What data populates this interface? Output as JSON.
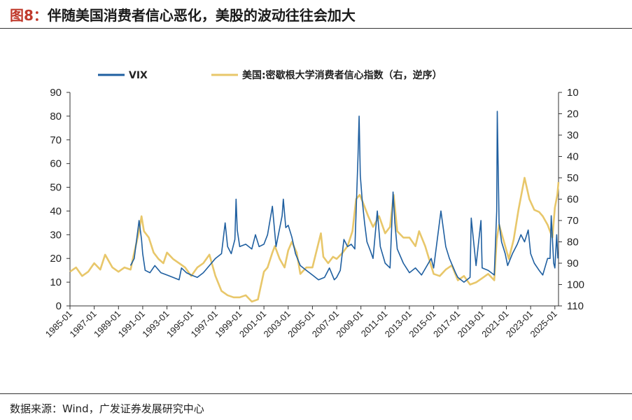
{
  "header": {
    "label": "图8：",
    "title": "伴随美国消费者信心恶化，美股的波动往往会加大"
  },
  "source": "数据来源：Wind，广发证券发展研究中心",
  "colors": {
    "vix": "#1f5fa0",
    "sentiment": "#e8c76a",
    "axis": "#333333"
  },
  "chart_data": {
    "type": "line",
    "title": "",
    "xlabel": "",
    "ylabel": "",
    "y_left": {
      "lim": [
        0,
        90
      ],
      "ticks": [
        0,
        10,
        20,
        30,
        40,
        50,
        60,
        70,
        80,
        90
      ]
    },
    "y_right": {
      "lim": [
        10,
        110
      ],
      "inverted": true,
      "ticks": [
        10,
        20,
        30,
        40,
        50,
        60,
        70,
        80,
        90,
        100,
        110
      ]
    },
    "x_range": [
      1985.0,
      2025.3
    ],
    "x_tick_labels": [
      "1985-01",
      "1987-01",
      "1989-01",
      "1991-01",
      "1993-01",
      "1995-01",
      "1997-01",
      "1999-01",
      "2001-01",
      "2003-01",
      "2005-01",
      "2007-01",
      "2009-01",
      "2011-01",
      "2013-01",
      "2015-01",
      "2017-01",
      "2019-01",
      "2021-01",
      "2023-01",
      "2025-01"
    ],
    "legend": {
      "position": "top",
      "entries": [
        "VIX",
        "美国:密歇根大学消费者信心指数（右，逆序）"
      ]
    },
    "series": [
      {
        "name": "VIX",
        "axis": "left",
        "x": [
          1990.0,
          1990.3,
          1990.6,
          1990.7,
          1990.9,
          1991.0,
          1991.2,
          1991.6,
          1992.0,
          1992.5,
          1993.0,
          1993.5,
          1994.0,
          1994.2,
          1994.6,
          1995.0,
          1995.5,
          1996.0,
          1996.5,
          1997.0,
          1997.5,
          1997.8,
          1998.0,
          1998.3,
          1998.6,
          1998.7,
          1998.8,
          1999.0,
          1999.5,
          2000.0,
          2000.3,
          2000.6,
          2001.0,
          2001.3,
          2001.7,
          2002.0,
          2002.5,
          2002.6,
          2002.8,
          2003.0,
          2003.3,
          2003.6,
          2004.0,
          2004.5,
          2005.0,
          2005.5,
          2006.0,
          2006.4,
          2006.8,
          2007.0,
          2007.3,
          2007.6,
          2007.9,
          2008.2,
          2008.5,
          2008.75,
          2008.85,
          2008.95,
          2009.1,
          2009.3,
          2009.5,
          2009.8,
          2010.0,
          2010.35,
          2010.6,
          2011.0,
          2011.4,
          2011.65,
          2011.8,
          2012.0,
          2012.5,
          2013.0,
          2013.5,
          2014.0,
          2014.8,
          2015.0,
          2015.6,
          2016.0,
          2016.3,
          2016.8,
          2017.0,
          2017.5,
          2018.0,
          2018.1,
          2018.5,
          2018.9,
          2019.0,
          2019.5,
          2020.0,
          2020.2,
          2020.25,
          2020.4,
          2020.6,
          2020.9,
          2021.1,
          2021.5,
          2021.9,
          2022.2,
          2022.5,
          2022.8,
          2023.0,
          2023.3,
          2023.7,
          2024.0,
          2024.4,
          2024.6,
          2024.7,
          2024.9,
          2025.0,
          2025.15,
          2025.25
        ],
        "values": [
          17,
          20,
          32,
          36,
          28,
          22,
          15,
          14,
          17,
          14,
          13,
          12,
          11,
          16,
          14,
          13,
          12,
          14,
          17,
          20,
          22,
          35,
          25,
          22,
          28,
          45,
          32,
          25,
          26,
          24,
          30,
          25,
          26,
          30,
          42,
          25,
          38,
          45,
          33,
          34,
          29,
          22,
          17,
          15,
          13,
          11,
          12,
          16,
          11,
          12,
          15,
          28,
          25,
          26,
          24,
          62,
          80,
          55,
          45,
          35,
          27,
          23,
          20,
          40,
          25,
          18,
          16,
          48,
          35,
          24,
          18,
          14,
          16,
          13,
          20,
          16,
          40,
          25,
          20,
          14,
          12,
          10,
          12,
          37,
          17,
          36,
          16,
          15,
          13,
          40,
          82,
          35,
          27,
          22,
          17,
          22,
          26,
          30,
          27,
          32,
          22,
          18,
          15,
          13,
          20,
          20,
          38,
          18,
          16,
          30,
          20
        ]
      },
      {
        "name": "美国:密歇根大学消费者信心指数（右，逆序）",
        "axis": "right",
        "x": [
          1985.0,
          1985.5,
          1986.0,
          1986.5,
          1987.0,
          1987.5,
          1987.9,
          1988.5,
          1989.0,
          1989.5,
          1990.0,
          1990.3,
          1990.7,
          1990.9,
          1991.1,
          1991.5,
          1991.9,
          1992.3,
          1992.7,
          1993.0,
          1993.5,
          1994.0,
          1994.5,
          1995.0,
          1995.5,
          1996.0,
          1996.5,
          1997.0,
          1997.5,
          1998.0,
          1998.5,
          1999.0,
          1999.5,
          2000.0,
          2000.5,
          2001.0,
          2001.3,
          2001.7,
          2001.9,
          2002.3,
          2002.7,
          2003.0,
          2003.3,
          2003.7,
          2004.0,
          2004.5,
          2005.0,
          2005.7,
          2005.9,
          2006.3,
          2006.7,
          2007.0,
          2007.5,
          2007.9,
          2008.3,
          2008.6,
          2008.9,
          2009.2,
          2009.6,
          2010.0,
          2010.5,
          2011.0,
          2011.4,
          2011.7,
          2012.0,
          2012.5,
          2013.0,
          2013.5,
          2013.8,
          2014.3,
          2015.0,
          2015.5,
          2016.0,
          2016.5,
          2017.0,
          2017.5,
          2018.0,
          2018.5,
          2019.0,
          2019.5,
          2020.0,
          2020.2,
          2020.4,
          2020.8,
          2021.2,
          2021.6,
          2022.0,
          2022.5,
          2022.9,
          2023.3,
          2023.7,
          2024.0,
          2024.4,
          2024.8,
          2025.0,
          2025.2,
          2025.3
        ],
        "values": [
          94,
          92,
          96,
          94,
          90,
          93,
          86,
          92,
          94,
          92,
          93,
          85,
          75,
          68,
          75,
          78,
          85,
          88,
          90,
          85,
          88,
          90,
          92,
          96,
          92,
          90,
          86,
          96,
          103,
          105,
          106,
          106,
          105,
          108,
          107,
          94,
          92,
          85,
          82,
          88,
          92,
          84,
          80,
          85,
          95,
          92,
          92,
          76,
          87,
          90,
          87,
          88,
          85,
          82,
          75,
          60,
          58,
          62,
          68,
          73,
          68,
          76,
          73,
          58,
          75,
          78,
          78,
          82,
          75,
          82,
          95,
          96,
          93,
          91,
          98,
          96,
          100,
          99,
          97,
          95,
          98,
          79,
          72,
          80,
          88,
          79,
          65,
          50,
          60,
          65,
          66,
          68,
          72,
          78,
          64,
          58,
          52
        ]
      }
    ]
  }
}
